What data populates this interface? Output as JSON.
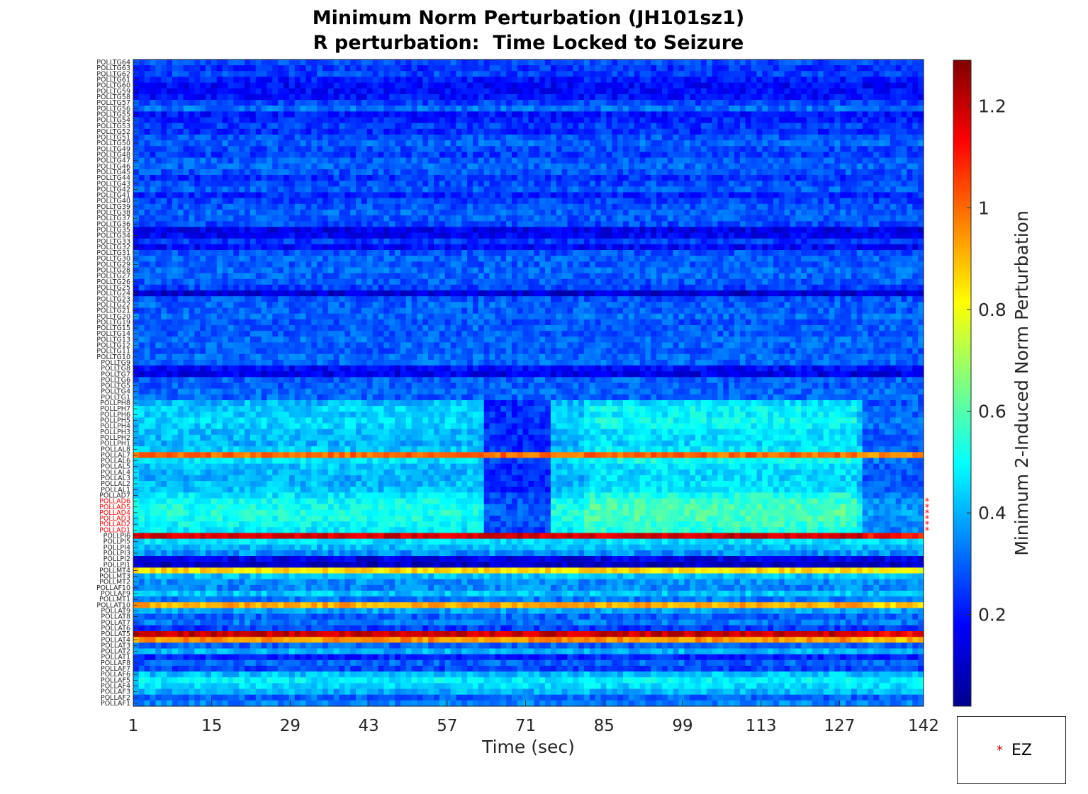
{
  "chart_data": {
    "type": "heatmap",
    "title": "Minimum Norm Perturbation (JH101sz1)",
    "subtitle": "R perturbation:  Time Locked to Seizure",
    "xlabel": "Time (sec)",
    "ylabel": "",
    "x_ticks": [
      1,
      15,
      29,
      43,
      57,
      71,
      85,
      99,
      113,
      127,
      142
    ],
    "x_range": [
      1,
      142
    ],
    "colorbar": {
      "label": "Minimum 2-Induced Norm Perturbation",
      "ticks": [
        "0.2",
        "0.4",
        "0.6",
        "0.8",
        "1",
        "1.2"
      ],
      "range": [
        0.02,
        1.29
      ],
      "colormap": "jet"
    },
    "ez_marker_color": "#ff0000",
    "legend": {
      "entries": [
        {
          "marker": "*",
          "label": "EZ",
          "color": "#ff0000"
        }
      ],
      "placement": "bottom-right"
    },
    "channels": [
      "POLLTG64",
      "POLLTG63",
      "POLLTG62",
      "POLLTG61",
      "POLLTG60",
      "POLLTG59",
      "POLLTG58",
      "POLLTG57",
      "POLLTG56",
      "POLLTG55",
      "POLLTG54",
      "POLLTG53",
      "POLLTG52",
      "POLLTG51",
      "POLLTG50",
      "POLLTG49",
      "POLLTG48",
      "POLLTG47",
      "POLLTG46",
      "POLLTG45",
      "POLLTG44",
      "POLLTG43",
      "POLLTG42",
      "POLLTG41",
      "POLLTG40",
      "POLLTG39",
      "POLLTG38",
      "POLLTG37",
      "POLLTG36",
      "POLLTG35",
      "POLLTG34",
      "POLLTG33",
      "POLLTG32",
      "POLLTG31",
      "POLLTG30",
      "POLLTG29",
      "POLLTG28",
      "POLLTG27",
      "POLLTG26",
      "POLLTG25",
      "POLLTG24",
      "POLLTG23",
      "POLLTG22",
      "POLLTG21",
      "POLLTG20",
      "POLLTG19",
      "POLLTG15",
      "POLLTG14",
      "POLLTG13",
      "POLLTG12",
      "POLLTG11",
      "POLLTG10",
      "POLLTG9",
      "POLLTG8",
      "POLLTG7",
      "POLLTG6",
      "POLLTG5",
      "POLLTG4",
      "POLLTG1",
      "POLLPH8",
      "POLLPH7",
      "POLLPH6",
      "POLLPH5",
      "POLLPH4",
      "POLLPH3",
      "POLLPH2",
      "POLLPH1",
      "POLLAL8",
      "POLLAL7",
      "POLLAL6",
      "POLLAL5",
      "POLLAL4",
      "POLLAL3",
      "POLLAL2",
      "POLLAL1",
      "POLLAD7",
      "POLLAD6",
      "POLLAD5",
      "POLLAD4",
      "POLLAD3",
      "POLLAD2",
      "POLLAD1",
      "POLLPI6",
      "POLLPI5",
      "POLLPI4",
      "POLLPI3",
      "POLLPI2",
      "POLLPI1",
      "POLLMT4",
      "POLLMT3",
      "POLLMT2",
      "POLLAF10",
      "POLLAF9",
      "POLLMT1",
      "POLLAT10",
      "POLLAT9",
      "POLLAT8",
      "POLLAT7",
      "POLLAT6",
      "POLLAT5",
      "POLLAT4",
      "POLLAT3",
      "POLLAT2",
      "POLLAT1",
      "POLLAF8",
      "POLLAF7",
      "POLLAF6",
      "POLLAF5",
      "POLLAF4",
      "POLLAF3",
      "POLLAF2",
      "POLLAF1"
    ],
    "ez_channels": [
      "POLLAD6",
      "POLLAD5",
      "POLLAD4",
      "POLLAD3",
      "POLLAD2",
      "POLLAD1"
    ],
    "channel_levels": [
      0.27,
      0.24,
      0.26,
      0.21,
      0.18,
      0.19,
      0.2,
      0.26,
      0.32,
      0.2,
      0.22,
      0.25,
      0.23,
      0.28,
      0.3,
      0.27,
      0.25,
      0.29,
      0.3,
      0.28,
      0.24,
      0.27,
      0.29,
      0.22,
      0.26,
      0.28,
      0.3,
      0.29,
      0.27,
      0.15,
      0.17,
      0.25,
      0.18,
      0.28,
      0.3,
      0.29,
      0.31,
      0.3,
      0.29,
      0.26,
      0.12,
      0.28,
      0.3,
      0.29,
      0.31,
      0.28,
      0.3,
      0.29,
      0.31,
      0.3,
      0.29,
      0.31,
      0.3,
      0.18,
      0.15,
      0.3,
      0.29,
      0.31,
      0.3,
      0.41,
      0.44,
      0.43,
      0.45,
      0.44,
      0.42,
      0.41,
      0.4,
      0.43,
      1.0,
      0.46,
      0.42,
      0.41,
      0.4,
      0.41,
      0.42,
      0.47,
      0.5,
      0.52,
      0.53,
      0.52,
      0.5,
      0.48,
      1.18,
      0.46,
      0.41,
      0.36,
      0.15,
      0.1,
      0.85,
      0.42,
      0.36,
      0.35,
      0.42,
      0.33,
      0.92,
      0.38,
      0.3,
      0.33,
      0.25,
      1.2,
      0.95,
      0.3,
      0.4,
      0.22,
      0.3,
      0.26,
      0.42,
      0.48,
      0.45,
      0.4,
      0.3,
      0.34
    ]
  }
}
